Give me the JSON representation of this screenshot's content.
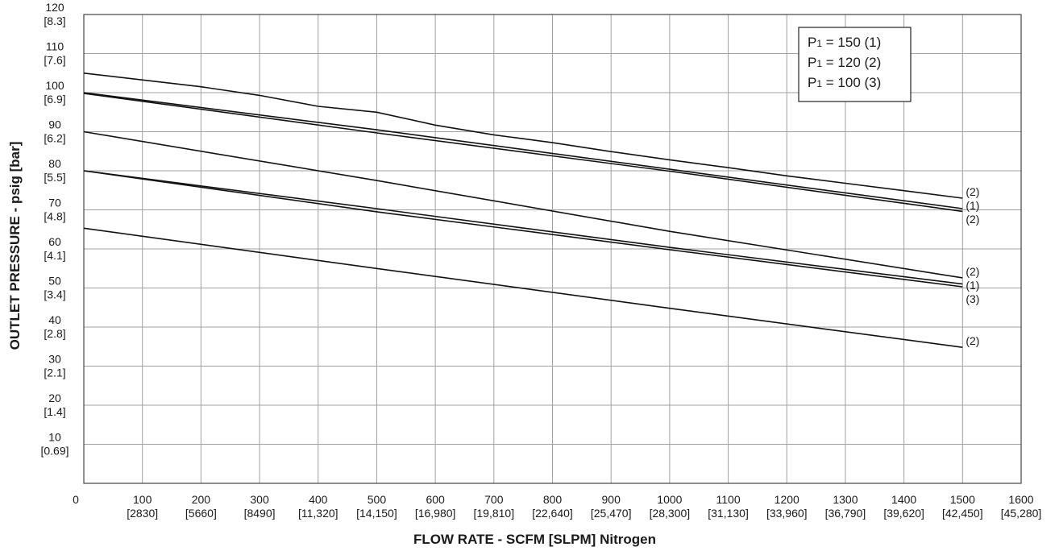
{
  "chart_data": {
    "type": "line",
    "xlabel": "FLOW RATE - SCFM [SLPM] Nitrogen",
    "ylabel": "OUTLET PRESSURE - psig [bar]",
    "xlim": [
      0,
      1600
    ],
    "ylim": [
      0,
      120
    ],
    "grid": true,
    "legend_position": "top-right",
    "x_ticks": [
      {
        "value": 0,
        "primary": "0",
        "secondary": ""
      },
      {
        "value": 100,
        "primary": "100",
        "secondary": "[2830]"
      },
      {
        "value": 200,
        "primary": "200",
        "secondary": "[5660]"
      },
      {
        "value": 300,
        "primary": "300",
        "secondary": "[8490]"
      },
      {
        "value": 400,
        "primary": "400",
        "secondary": "[11,320]"
      },
      {
        "value": 500,
        "primary": "500",
        "secondary": "[14,150]"
      },
      {
        "value": 600,
        "primary": "600",
        "secondary": "[16,980]"
      },
      {
        "value": 700,
        "primary": "700",
        "secondary": "[19,810]"
      },
      {
        "value": 800,
        "primary": "800",
        "secondary": "[22,640]"
      },
      {
        "value": 900,
        "primary": "900",
        "secondary": "[25,470]"
      },
      {
        "value": 1000,
        "primary": "1000",
        "secondary": "[28,300]"
      },
      {
        "value": 1100,
        "primary": "1100",
        "secondary": "[31,130]"
      },
      {
        "value": 1200,
        "primary": "1200",
        "secondary": "[33,960]"
      },
      {
        "value": 1300,
        "primary": "1300",
        "secondary": "[36,790]"
      },
      {
        "value": 1400,
        "primary": "1400",
        "secondary": "[39,620]"
      },
      {
        "value": 1500,
        "primary": "1500",
        "secondary": "[42,450]"
      },
      {
        "value": 1600,
        "primary": "1600",
        "secondary": "[45,280]"
      }
    ],
    "y_ticks": [
      {
        "value": 10,
        "primary": "10",
        "secondary": "[0.69]"
      },
      {
        "value": 20,
        "primary": "20",
        "secondary": "[1.4]"
      },
      {
        "value": 30,
        "primary": "30",
        "secondary": "[2.1]"
      },
      {
        "value": 40,
        "primary": "40",
        "secondary": "[2.8]"
      },
      {
        "value": 50,
        "primary": "50",
        "secondary": "[3.4]"
      },
      {
        "value": 60,
        "primary": "60",
        "secondary": "[4.1]"
      },
      {
        "value": 70,
        "primary": "70",
        "secondary": "[4.8]"
      },
      {
        "value": 80,
        "primary": "80",
        "secondary": "[5.5]"
      },
      {
        "value": 90,
        "primary": "90",
        "secondary": "[6.2]"
      },
      {
        "value": 100,
        "primary": "100",
        "secondary": "[6.9]"
      },
      {
        "value": 110,
        "primary": "110",
        "secondary": "[7.6]"
      },
      {
        "value": 120,
        "primary": "120",
        "secondary": "[8.3]"
      }
    ],
    "legend": [
      {
        "prefix": "P",
        "subscript": "1",
        "text": " = 150 (1)"
      },
      {
        "prefix": "P",
        "subscript": "1",
        "text": " = 120 (2)"
      },
      {
        "prefix": "P",
        "subscript": "1",
        "text": " = 100 (3)"
      }
    ],
    "series": [
      {
        "end_label": "(2)",
        "x": [
          0,
          200,
          300,
          400,
          500,
          600,
          700,
          800,
          900,
          1000,
          1100,
          1200,
          1300,
          1400,
          1500
        ],
        "y": [
          105,
          101.5,
          99.3,
          96.5,
          95,
          91.7,
          89.2,
          87.2,
          84.9,
          82.8,
          80.8,
          78.7,
          76.8,
          74.9,
          73
        ]
      },
      {
        "end_label": "(1)",
        "x": [
          0,
          500,
          1000,
          1500
        ],
        "y": [
          100,
          90.5,
          80.4,
          70.3
        ]
      },
      {
        "end_label": "(2)",
        "x": [
          0,
          500,
          1000,
          1500
        ],
        "y": [
          99.8,
          89.7,
          79.9,
          69.6
        ]
      },
      {
        "end_label": "(2)",
        "x": [
          0,
          500,
          1000,
          1500
        ],
        "y": [
          90,
          77.5,
          64.5,
          52.6
        ]
      },
      {
        "end_label": "(1)",
        "x": [
          0,
          500,
          1000,
          1500
        ],
        "y": [
          80,
          70.3,
          60.4,
          51
        ]
      },
      {
        "end_label": "(3)",
        "x": [
          0,
          500,
          1000,
          1500
        ],
        "y": [
          80,
          69.5,
          59.8,
          50.3
        ]
      },
      {
        "end_label": "(2)",
        "x": [
          0,
          500,
          1000,
          1500
        ],
        "y": [
          65.3,
          55,
          44.8,
          34.8
        ]
      }
    ]
  }
}
